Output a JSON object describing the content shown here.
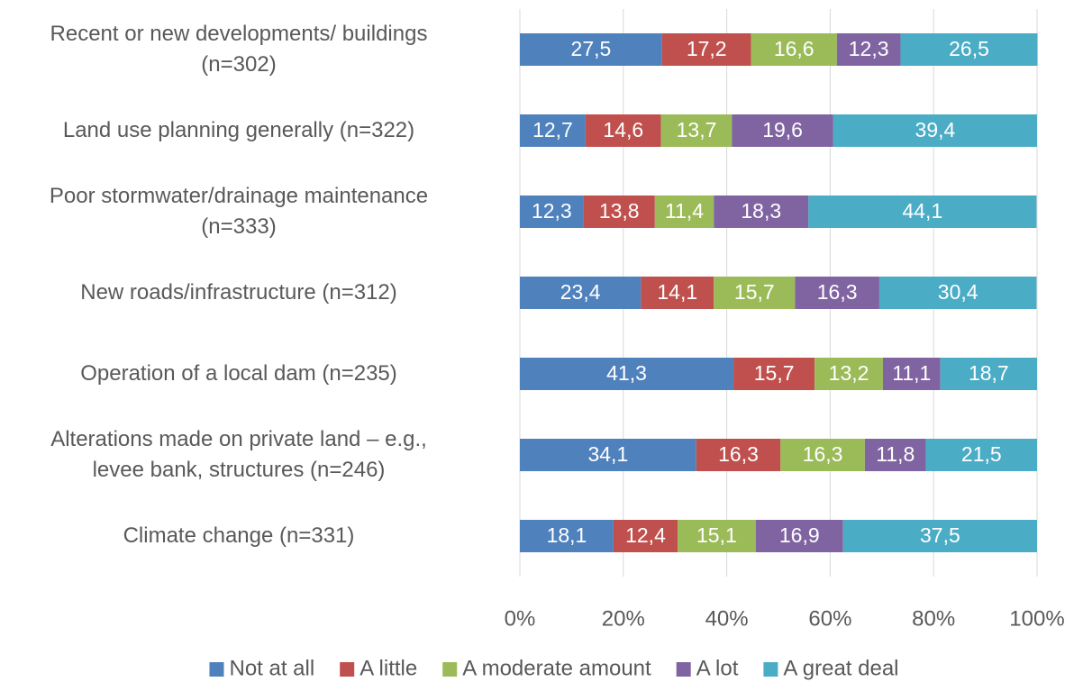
{
  "chart_data": {
    "type": "stacked-bar-horizontal",
    "categories": [
      "Recent or new developments/ buildings\n(n=302)",
      "Land use planning generally (n=322)",
      "Poor stormwater/drainage maintenance\n(n=333)",
      "New roads/infrastructure (n=312)",
      "Operation of a local dam (n=235)",
      "Alterations made on private land – e.g.,\nlevee bank, structures (n=246)",
      "Climate change (n=331)"
    ],
    "series": [
      {
        "name": "Not at all",
        "color": "#4f81bd",
        "values": [
          27.5,
          12.7,
          12.3,
          23.4,
          41.3,
          34.1,
          18.1
        ],
        "value_labels": [
          "27,5",
          "12,7",
          "12,3",
          "23,4",
          "41,3",
          "34,1",
          "18,1"
        ]
      },
      {
        "name": "A little",
        "color": "#c0504d",
        "values": [
          17.2,
          14.6,
          13.8,
          14.1,
          15.7,
          16.3,
          12.4
        ],
        "value_labels": [
          "17,2",
          "14,6",
          "13,8",
          "14,1",
          "15,7",
          "16,3",
          "12,4"
        ]
      },
      {
        "name": "A moderate amount",
        "color": "#9bbb59",
        "values": [
          16.6,
          13.7,
          11.4,
          15.7,
          13.2,
          16.3,
          15.1
        ],
        "value_labels": [
          "16,6",
          "13,7",
          "11,4",
          "15,7",
          "13,2",
          "16,3",
          "15,1"
        ]
      },
      {
        "name": "A lot",
        "color": "#8064a2",
        "values": [
          12.3,
          19.6,
          18.3,
          16.3,
          11.1,
          11.8,
          16.9
        ],
        "value_labels": [
          "12,3",
          "19,6",
          "18,3",
          "16,3",
          "11,1",
          "11,8",
          "16,9"
        ]
      },
      {
        "name": "A great deal",
        "color": "#4bacc6",
        "values": [
          26.5,
          39.4,
          44.1,
          30.4,
          18.7,
          21.5,
          37.5
        ],
        "value_labels": [
          "26,5",
          "39,4",
          "44,1",
          "30,4",
          "18,7",
          "21,5",
          "37,5"
        ]
      }
    ],
    "xlim": [
      0,
      100
    ],
    "xticks": [
      {
        "value": 0,
        "label": "0%"
      },
      {
        "value": 20,
        "label": "20%"
      },
      {
        "value": 40,
        "label": "40%"
      },
      {
        "value": 60,
        "label": "60%"
      },
      {
        "value": 80,
        "label": "80%"
      },
      {
        "value": 100,
        "label": "100%"
      }
    ],
    "grid": true,
    "legend": "bottom"
  }
}
